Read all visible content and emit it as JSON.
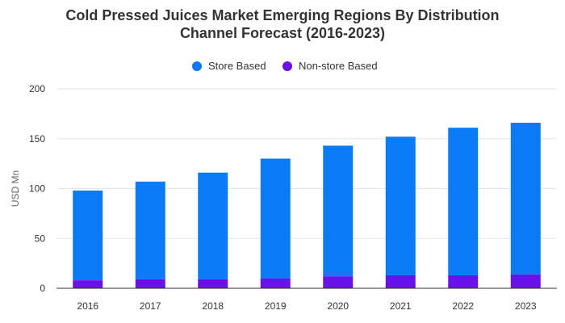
{
  "colors": {
    "store": "#0a7bf5",
    "nonstore": "#6a10e8",
    "grid": "#e6e6e6",
    "axis": "#333333"
  },
  "chart_data": {
    "type": "bar",
    "stacked": true,
    "title": "Cold Pressed Juices Market Emerging Regions By Distribution Channel Forecast (2016-2023)",
    "title_lines": [
      "Cold Pressed Juices Market Emerging Regions By Distribution",
      "Channel Forecast (2016-2023)"
    ],
    "xlabel": "",
    "ylabel": "USD Mn",
    "ylim": [
      0,
      200
    ],
    "yticks": [
      "0",
      "50",
      "100",
      "150",
      "200"
    ],
    "grid": true,
    "legend_position": "top-center",
    "categories": [
      "2016",
      "2017",
      "2018",
      "2019",
      "2020",
      "2021",
      "2022",
      "2023"
    ],
    "series": [
      {
        "name": "Store Based",
        "values": [
          90,
          98,
          107,
          120,
          131,
          139,
          148,
          152
        ]
      },
      {
        "name": "Non-store Based",
        "values": [
          8,
          9,
          9,
          10,
          12,
          13,
          13,
          14
        ]
      }
    ]
  }
}
